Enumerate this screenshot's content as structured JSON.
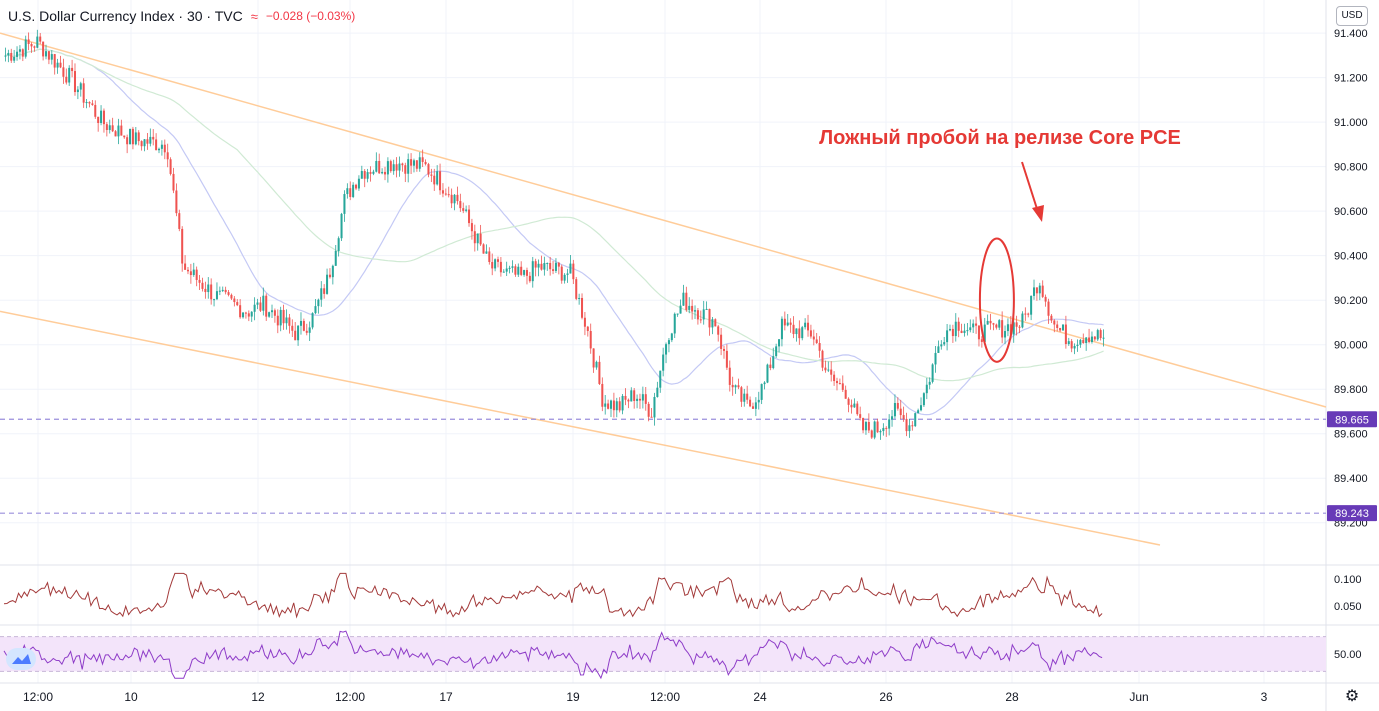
{
  "header": {
    "symbol": "U.S. Dollar Currency Index · 30 · TVC",
    "indicator_icon": "≈",
    "change": "−0.028 (−0.03%)"
  },
  "currency_button": "USD",
  "annotation": {
    "text": "Ложный пробой на релизе Core PCE",
    "color": "#e53935"
  },
  "colors": {
    "up": "#26a69a",
    "down": "#ef5350",
    "channel": "#ffcc99",
    "ma_blue": "#c4c9f5",
    "ma_green": "#d0ead4",
    "level": "#9a8fdc",
    "badge": "#673ab7",
    "vol_line": "#a33a3a",
    "rsi_line": "#8e3cc8",
    "rsi_band": "#f3e4fa"
  },
  "chart_data": [
    {
      "type": "candlestick",
      "title": "U.S. Dollar Currency Index",
      "ylim": [
        89.1,
        91.45
      ],
      "y_ticks": [
        "91.400",
        "91.200",
        "91.000",
        "90.800",
        "90.600",
        "90.400",
        "90.200",
        "90.000",
        "89.800",
        "89.600",
        "89.400",
        "89.200"
      ],
      "x_ticks": [
        "12:00",
        "10",
        "12",
        "12:00",
        "17",
        "19",
        "12:00",
        "24",
        "26",
        "28",
        "Jun",
        "3"
      ],
      "price_path": [
        [
          0,
          91.3
        ],
        [
          2,
          91.36
        ],
        [
          4,
          91.2
        ],
        [
          6,
          91.0
        ],
        [
          8,
          90.92
        ],
        [
          10,
          90.9
        ],
        [
          11,
          90.35
        ],
        [
          13,
          90.22
        ],
        [
          15,
          90.15
        ],
        [
          16,
          90.18
        ],
        [
          18,
          90.05
        ],
        [
          19,
          90.12
        ],
        [
          20,
          90.3
        ],
        [
          21,
          90.65
        ],
        [
          22,
          90.78
        ],
        [
          24,
          90.82
        ],
        [
          26,
          90.8
        ],
        [
          28,
          90.65
        ],
        [
          30,
          90.35
        ],
        [
          32,
          90.3
        ],
        [
          33,
          90.35
        ],
        [
          35,
          90.32
        ],
        [
          36,
          90.08
        ],
        [
          37,
          89.75
        ],
        [
          38,
          89.72
        ],
        [
          39,
          89.78
        ],
        [
          40,
          89.7
        ],
        [
          41,
          90.05
        ],
        [
          42,
          90.2
        ],
        [
          44,
          90.1
        ],
        [
          45,
          89.8
        ],
        [
          46,
          89.72
        ],
        [
          47,
          89.82
        ],
        [
          48,
          90.08
        ],
        [
          50,
          90.05
        ],
        [
          51,
          89.85
        ],
        [
          52,
          89.8
        ],
        [
          53,
          89.62
        ],
        [
          54,
          89.62
        ],
        [
          55,
          89.7
        ],
        [
          56,
          89.64
        ],
        [
          57,
          89.8
        ],
        [
          58,
          90.05
        ],
        [
          59,
          90.1
        ],
        [
          60,
          90.05
        ],
        [
          62,
          90.08
        ],
        [
          63,
          90.1
        ],
        [
          64,
          90.3
        ],
        [
          65,
          90.08
        ],
        [
          66,
          90.02
        ],
        [
          67,
          90.05
        ],
        [
          68,
          90.03
        ]
      ],
      "annotation_range": [
        89.95,
        90.45
      ],
      "channel_upper": {
        "start": 91.4,
        "end": 89.72
      },
      "channel_lower": {
        "start": 90.15,
        "end": 89.1
      },
      "levels": [
        {
          "value": 89.665,
          "label": "89.665"
        },
        {
          "value": 89.243,
          "label": "89.243"
        }
      ]
    },
    {
      "type": "line",
      "ylim": [
        0.02,
        0.12
      ],
      "y_ticks": [
        "0.100",
        "0.050"
      ]
    },
    {
      "type": "line",
      "ylim": [
        20,
        80
      ],
      "y_ticks": [
        "50.00"
      ],
      "band": [
        30,
        70
      ]
    }
  ]
}
